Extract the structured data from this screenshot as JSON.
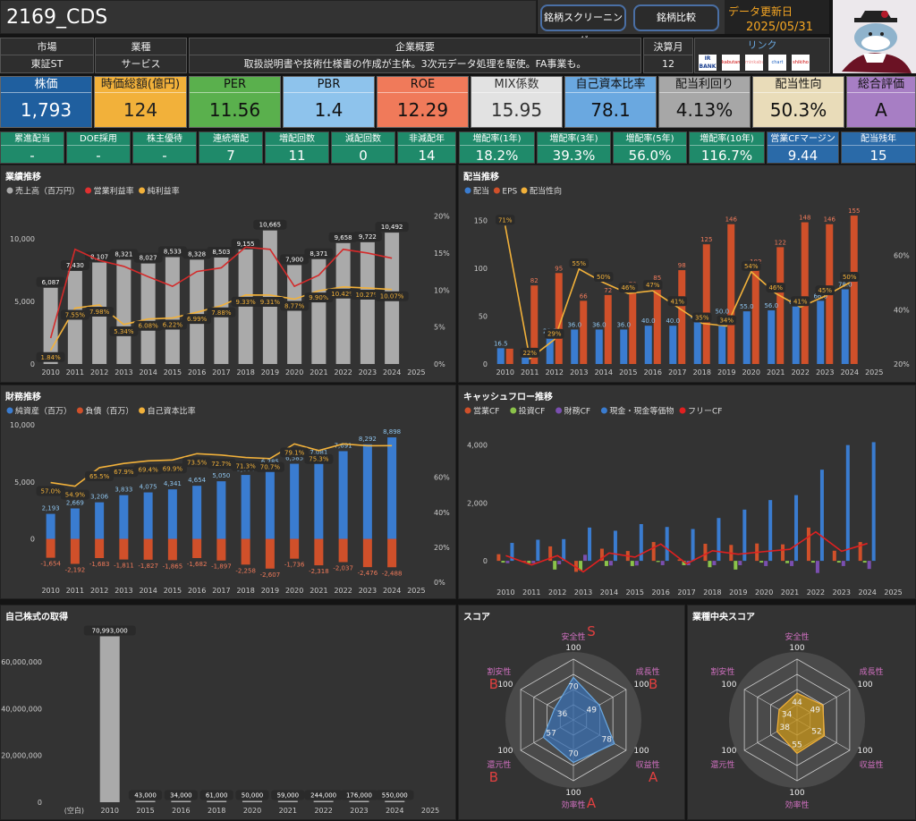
{
  "title": "2169_CDS",
  "buttons": {
    "screening": "銘柄スクリーニング",
    "compare": "銘柄比較"
  },
  "update": {
    "label": "データ更新日",
    "date": "2025/05/31"
  },
  "info": {
    "market_label": "市場",
    "market": "東証ST",
    "industry_label": "業種",
    "industry": "サービス",
    "summary_label": "企業概要",
    "summary": "取扱説明書や技術仕様書の作成が主体。3次元データ処理を駆使。FA事業も。",
    "fiscal_label": "決算月",
    "fiscal": "12",
    "link_label": "リンク",
    "links": [
      "IR BANK",
      "kabutan",
      "minkabu",
      "chart",
      "shikiho"
    ]
  },
  "metrics": [
    {
      "label": "株価",
      "value": "1,793",
      "bg": "#1f5f9f",
      "fg": "#ffffff"
    },
    {
      "label": "時価総額(億円)",
      "value": "124",
      "bg": "#f2b13a",
      "fg": "#222222"
    },
    {
      "label": "PER",
      "value": "11.56",
      "bg": "#5ab04d",
      "fg": "#111111"
    },
    {
      "label": "PBR",
      "value": "1.4",
      "bg": "#8ec3ec",
      "fg": "#111111"
    },
    {
      "label": "ROE",
      "value": "12.29",
      "bg": "#f07a5a",
      "fg": "#111111"
    },
    {
      "label": "MIX係数",
      "value": "15.95",
      "bg": "#e2e2e2",
      "fg": "#333333"
    },
    {
      "label": "自己資本比率",
      "value": "78.1",
      "bg": "#6aa8e0",
      "fg": "#111111"
    },
    {
      "label": "配当利回り",
      "value": "4.13%",
      "bg": "#a7a7a7",
      "fg": "#111111"
    },
    {
      "label": "配当性向",
      "value": "50.3%",
      "bg": "#e9dcb9",
      "fg": "#111111"
    },
    {
      "label": "総合評価",
      "value": "A",
      "bg": "#a77ec4",
      "fg": "#111111"
    }
  ],
  "greens": [
    {
      "label": "累進配当",
      "value": "-"
    },
    {
      "label": "DOE採用",
      "value": "-"
    },
    {
      "label": "株主優待",
      "value": "-"
    },
    {
      "label": "連続増配",
      "value": "7"
    },
    {
      "label": "増配回数",
      "value": "11"
    },
    {
      "label": "減配回数",
      "value": "0"
    },
    {
      "label": "非減配年",
      "value": "14"
    }
  ],
  "growth": [
    {
      "label": "増配率(1年)",
      "value": "18.2%"
    },
    {
      "label": "増配率(3年)",
      "value": "39.3%"
    },
    {
      "label": "増配率(5年)",
      "value": "56.0%"
    },
    {
      "label": "増配率(10年)",
      "value": "116.7%"
    }
  ],
  "blues": [
    {
      "label": "営業CFマージン",
      "value": "9.44"
    },
    {
      "label": "配当残年",
      "value": "15"
    }
  ],
  "panels": {
    "p1": {
      "title": "業績推移",
      "legend": [
        "売上高（百万円）",
        "営業利益率",
        "純利益率"
      ]
    },
    "p2": {
      "title": "配当推移",
      "legend": [
        "配当",
        "EPS",
        "配当性向"
      ]
    },
    "p3": {
      "title": "財務推移",
      "legend": [
        "純資産（百万）",
        "負債（百万）",
        "自己資本比率"
      ]
    },
    "p4": {
      "title": "キャッシュフロー推移",
      "legend": [
        "営業CF",
        "投資CF",
        "財務CF",
        "現金・現金等価物",
        "フリーCF"
      ]
    },
    "p5": {
      "title": "自己株式の取得"
    },
    "p6": {
      "title": "スコア"
    },
    "p7": {
      "title": "業種中央スコア"
    }
  },
  "chart_data": [
    {
      "type": "bar",
      "id": "performance",
      "categories": [
        "2010",
        "2011",
        "2012",
        "2013",
        "2014",
        "2015",
        "2016",
        "2017",
        "2018",
        "2019",
        "2020",
        "2021",
        "2022",
        "2023",
        "2024",
        "2025"
      ],
      "series": [
        {
          "name": "売上高（百万円）",
          "values": [
            6087,
            7430,
            8107,
            8321,
            8027,
            8533,
            8328,
            8503,
            9155,
            10665,
            7900,
            8371,
            9658,
            9722,
            10492,
            null
          ]
        },
        {
          "name": "営業利益率",
          "values": [
            3.5,
            15.5,
            14.0,
            13.2,
            11.8,
            10.5,
            12.5,
            13.0,
            15.8,
            15.5,
            10.5,
            12.0,
            15.5,
            15.0,
            14.3,
            null
          ]
        },
        {
          "name": "純利益率",
          "values": [
            1.84,
            7.55,
            7.98,
            5.34,
            6.08,
            6.22,
            6.99,
            7.88,
            9.33,
            9.31,
            8.77,
            9.9,
            10.42,
            10.27,
            10.07,
            null
          ]
        }
      ],
      "value_labels": [
        "6,087",
        "7,430",
        "8,107",
        "8,321",
        "8,027",
        "8,533",
        "8,328",
        "8,503",
        "9,155",
        "10,665",
        "7,900",
        "8,371",
        "9,658",
        "9,722",
        "10,492"
      ],
      "net_labels": [
        "1.84%",
        "7.55%",
        "7.98%",
        "5.34%",
        "6.08%",
        "6.22%",
        "6.99%",
        "7.88%",
        "9.33%",
        "9.31%",
        "8.77%",
        "9.90%",
        "10.42%",
        "10.27%",
        "10.07%"
      ],
      "y_ticks": [
        "0",
        "5,000",
        "10,000"
      ],
      "y2_ticks": [
        "0%",
        "5%",
        "10%",
        "15%",
        "20%"
      ],
      "ylim": [
        0,
        13000
      ],
      "y2lim": [
        0,
        22
      ]
    },
    {
      "type": "bar",
      "id": "dividend",
      "categories": [
        "2010",
        "2011",
        "2012",
        "2013",
        "2014",
        "2015",
        "2016",
        "2017",
        "2018",
        "2019",
        "2020",
        "2021",
        "2022",
        "2023",
        "2024",
        "2025"
      ],
      "series": [
        {
          "name": "配当",
          "values": [
            16.5,
            16.5,
            29.5,
            36,
            36,
            36,
            40,
            40,
            44,
            50,
            55,
            56,
            60,
            66,
            78,
            null
          ]
        },
        {
          "name": "EPS",
          "values": [
            16,
            82,
            95,
            66,
            72,
            78,
            85,
            98,
            125,
            146,
            102,
            122,
            148,
            146,
            155,
            null
          ]
        },
        {
          "name": "配当性向",
          "values": [
            71,
            22,
            29,
            55,
            50,
            46,
            47,
            41,
            35,
            34,
            54,
            46,
            41,
            45,
            50,
            null
          ]
        }
      ],
      "div_labels": [
        "16.5",
        "",
        "29.5",
        "36.0",
        "36.0",
        "36.0",
        "40.0",
        "40.0",
        "44.0",
        "50.0",
        "55.0",
        "56.0",
        "60.0",
        "66.0",
        "78.0"
      ],
      "eps_labels": [
        "",
        "82",
        "95",
        "66",
        "72",
        "78",
        "85",
        "98",
        "125",
        "146",
        "102",
        "122",
        "148",
        "146",
        "155"
      ],
      "payout_labels": [
        "71%",
        "22%",
        "29%",
        "55%",
        "50%",
        "46%",
        "47%",
        "41%",
        "35%",
        "34%",
        "54%",
        "46%",
        "41%",
        "45%",
        "50%"
      ],
      "y_ticks": [
        "0",
        "50",
        "100",
        "150"
      ],
      "y2_ticks": [
        "20%",
        "40%",
        "60%"
      ],
      "ylim": [
        0,
        170
      ],
      "y2lim": [
        20,
        80
      ]
    },
    {
      "type": "bar",
      "id": "financial",
      "categories": [
        "2010",
        "2011",
        "2012",
        "2013",
        "2014",
        "2015",
        "2016",
        "2017",
        "2018",
        "2019",
        "2020",
        "2021",
        "2022",
        "2023",
        "2024",
        "2025"
      ],
      "series": [
        {
          "name": "純資産（百万）",
          "values": [
            2193,
            2669,
            3206,
            3833,
            4075,
            4341,
            4654,
            5050,
            5604,
            6285,
            6585,
            7081,
            7691,
            8292,
            8898,
            null
          ]
        },
        {
          "name": "負債（百万）",
          "values": [
            -1654,
            -2192,
            -1683,
            -1811,
            -1827,
            -1865,
            -1682,
            -1897,
            -2258,
            -2607,
            -1736,
            -2318,
            -2037,
            -2476,
            -2488,
            null
          ]
        },
        {
          "name": "自己資本比率",
          "values": [
            57.0,
            54.9,
            65.5,
            67.9,
            69.4,
            69.9,
            73.5,
            72.7,
            71.3,
            70.7,
            79.1,
            75.3,
            79.1,
            78.0,
            78.1,
            null
          ]
        }
      ],
      "asset_labels": [
        "2,193",
        "2,669",
        "3,206",
        "3,833",
        "4,075",
        "4,341",
        "4,654",
        "5,050",
        "5,604",
        "6,285",
        "6,585",
        "7,081",
        "7,691",
        "8,292",
        "8,898"
      ],
      "debt_labels": [
        "-1,654",
        "-2,192",
        "-1,683",
        "-1,811",
        "-1,827",
        "-1,865",
        "-1,682",
        "-1,897",
        "-2,258",
        "-2,607",
        "-1,736",
        "-2,318",
        "-2,037",
        "-2,476",
        "-2,488"
      ],
      "ratio_labels": [
        "57.0%",
        "54.9%",
        "65.5%",
        "67.9%",
        "69.4%",
        "69.9%",
        "73.5%",
        "72.7%",
        "71.3%",
        "70.7%",
        "79.1%",
        "75.3%",
        "",
        "",
        ""
      ],
      "y_ticks": [
        "0",
        "5,000",
        "10,000"
      ],
      "y2_ticks": [
        "0%",
        "20%",
        "40%",
        "60%"
      ],
      "ylim": [
        -3800,
        10000
      ],
      "y2lim": [
        0,
        90
      ]
    },
    {
      "type": "bar",
      "id": "cashflow",
      "categories": [
        "2010",
        "2011",
        "2012",
        "2013",
        "2014",
        "2015",
        "2016",
        "2017",
        "2018",
        "2019",
        "2020",
        "2021",
        "2022",
        "2023",
        "2024",
        "2025"
      ],
      "series": [
        {
          "name": "営業CF",
          "values": [
            230,
            -30,
            500,
            -380,
            420,
            340,
            650,
            50,
            590,
            550,
            600,
            570,
            1150,
            350,
            650,
            null
          ]
        },
        {
          "name": "投資CF",
          "values": [
            -60,
            -80,
            -300,
            -330,
            -180,
            -180,
            -40,
            -150,
            -220,
            -300,
            -60,
            -80,
            -60,
            -60,
            -60,
            null
          ]
        },
        {
          "name": "財務CF",
          "values": [
            -80,
            -80,
            -120,
            210,
            -160,
            -160,
            -150,
            -150,
            -150,
            -150,
            -180,
            -180,
            -420,
            -180,
            -280,
            null
          ]
        },
        {
          "name": "現金・現金等価物",
          "values": [
            620,
            730,
            750,
            1150,
            1040,
            1270,
            1170,
            1100,
            1480,
            1770,
            2100,
            2270,
            3150,
            4000,
            4100,
            null
          ]
        },
        {
          "name": "フリーCF",
          "values": [
            180,
            -140,
            180,
            -380,
            270,
            130,
            580,
            -100,
            350,
            230,
            320,
            400,
            1000,
            330,
            600,
            null
          ]
        }
      ],
      "y_ticks": [
        "0",
        "2,000",
        "4,000"
      ],
      "ylim": [
        -800,
        4700
      ]
    },
    {
      "type": "bar",
      "id": "buyback",
      "categories": [
        "(空白)",
        "2010",
        "2015",
        "2016",
        "2018",
        "2020",
        "2021",
        "2022",
        "2023",
        "2024",
        "2025"
      ],
      "values": [
        null,
        70993000,
        43000,
        34000,
        61000,
        50000,
        59000,
        244000,
        176000,
        550000,
        null
      ],
      "value_labels": [
        "",
        "70,993,000",
        "43,000",
        "34,000",
        "61,000",
        "50,000",
        "59,000",
        "244,000",
        "176,000",
        "550,000",
        ""
      ],
      "y_ticks": [
        "0",
        "20,000,000",
        "40,000,000",
        "60,000,000"
      ],
      "ylim": [
        0,
        75000000
      ]
    },
    {
      "type": "radar",
      "id": "score",
      "axes": [
        "安全性",
        "成長性",
        "収益性",
        "効率性",
        "還元性",
        "割安性"
      ],
      "values": [
        70,
        49,
        78,
        70,
        57,
        36
      ],
      "grades": [
        "S",
        "B",
        "A",
        "A",
        "B",
        "B"
      ],
      "max_label": "100"
    },
    {
      "type": "radar",
      "id": "industry_score",
      "axes": [
        "安全性",
        "成長性",
        "収益性",
        "効率性",
        "還元性",
        "割安性"
      ],
      "values": [
        44,
        49,
        52,
        55,
        38,
        34
      ],
      "max_label": "100"
    }
  ]
}
